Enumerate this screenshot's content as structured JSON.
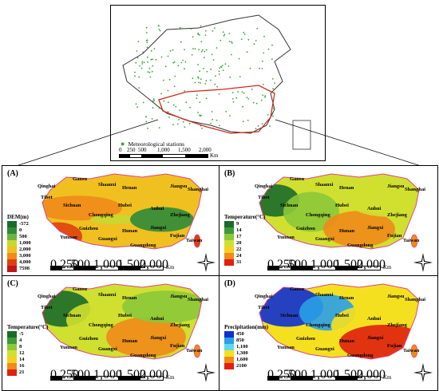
{
  "overview": {
    "legend_label": "Meteorological stations",
    "scale_ticks": [
      "0",
      "250",
      "500",
      "1,000",
      "1,500",
      "2,000"
    ],
    "scale_unit": "Km"
  },
  "panels": [
    {
      "label": "(A)",
      "legend_title": "DEM(m)",
      "legend": [
        {
          "label": "-572",
          "color": "#1a6b2a"
        },
        {
          "label": "0",
          "color": "#2e8b3a"
        },
        {
          "label": "500",
          "color": "#6fb43f"
        },
        {
          "label": "1,000",
          "color": "#c8d830"
        },
        {
          "label": "2,000",
          "color": "#f0c020"
        },
        {
          "label": "3,000",
          "color": "#f08a18"
        },
        {
          "label": "4,000",
          "color": "#e04010"
        },
        {
          "label": "7598",
          "color": "#c01818"
        }
      ],
      "scale_ticks": [
        "0",
        "250",
        "500",
        "1,000",
        "1,500",
        "2,000"
      ],
      "scale_unit": "Km"
    },
    {
      "label": "(B)",
      "legend_title": "Temperature(°C)",
      "legend": [
        {
          "label": "9",
          "color": "#1a6b2a"
        },
        {
          "label": "14",
          "color": "#3c9a3a"
        },
        {
          "label": "17",
          "color": "#8cc83a"
        },
        {
          "label": "20",
          "color": "#d0e030"
        },
        {
          "label": "22",
          "color": "#f5d020"
        },
        {
          "label": "24",
          "color": "#f08a18"
        },
        {
          "label": "31",
          "color": "#e02010"
        }
      ],
      "scale_ticks": [
        "0",
        "250",
        "500",
        "1,000",
        "1,500",
        "2,000"
      ],
      "scale_unit": "Km"
    },
    {
      "label": "(C)",
      "legend_title": "Temperature(°C)",
      "legend": [
        {
          "label": "-5",
          "color": "#1a6b2a"
        },
        {
          "label": "4",
          "color": "#3c9a3a"
        },
        {
          "label": "8",
          "color": "#8cc83a"
        },
        {
          "label": "12",
          "color": "#d0e030"
        },
        {
          "label": "14",
          "color": "#f5d020"
        },
        {
          "label": "16",
          "color": "#f08a18"
        },
        {
          "label": "21",
          "color": "#e02010"
        }
      ],
      "scale_ticks": [
        "0",
        "250",
        "500",
        "1,000",
        "1,500",
        "2,000"
      ],
      "scale_unit": "Km"
    },
    {
      "label": "(D)",
      "legend_title": "Precipitation(mm)",
      "legend": [
        {
          "label": "450",
          "color": "#1030d0"
        },
        {
          "label": "850",
          "color": "#2aa0e8"
        },
        {
          "label": "1,100",
          "color": "#60d8f0"
        },
        {
          "label": "1,300",
          "color": "#f5e020"
        },
        {
          "label": "1,600",
          "color": "#f08a18"
        },
        {
          "label": "2100",
          "color": "#e02010"
        }
      ],
      "scale_ticks": [
        "0",
        "250",
        "500",
        "1,000",
        "1,500",
        "2,000"
      ],
      "scale_unit": "Km"
    }
  ],
  "place_labels": [
    "Qinghai",
    "Gansu",
    "Shaanxi",
    "Henan",
    "Jiangsu",
    "Shanghai",
    "Tibet",
    "Sichuan",
    "Hubei",
    "Anhui",
    "Zhejiang",
    "Chongqing",
    "Guizhou",
    "Hunan",
    "Jiangxi",
    "Yunnan",
    "Guangxi",
    "Guangdong",
    "Fujian",
    "Taiwan"
  ]
}
